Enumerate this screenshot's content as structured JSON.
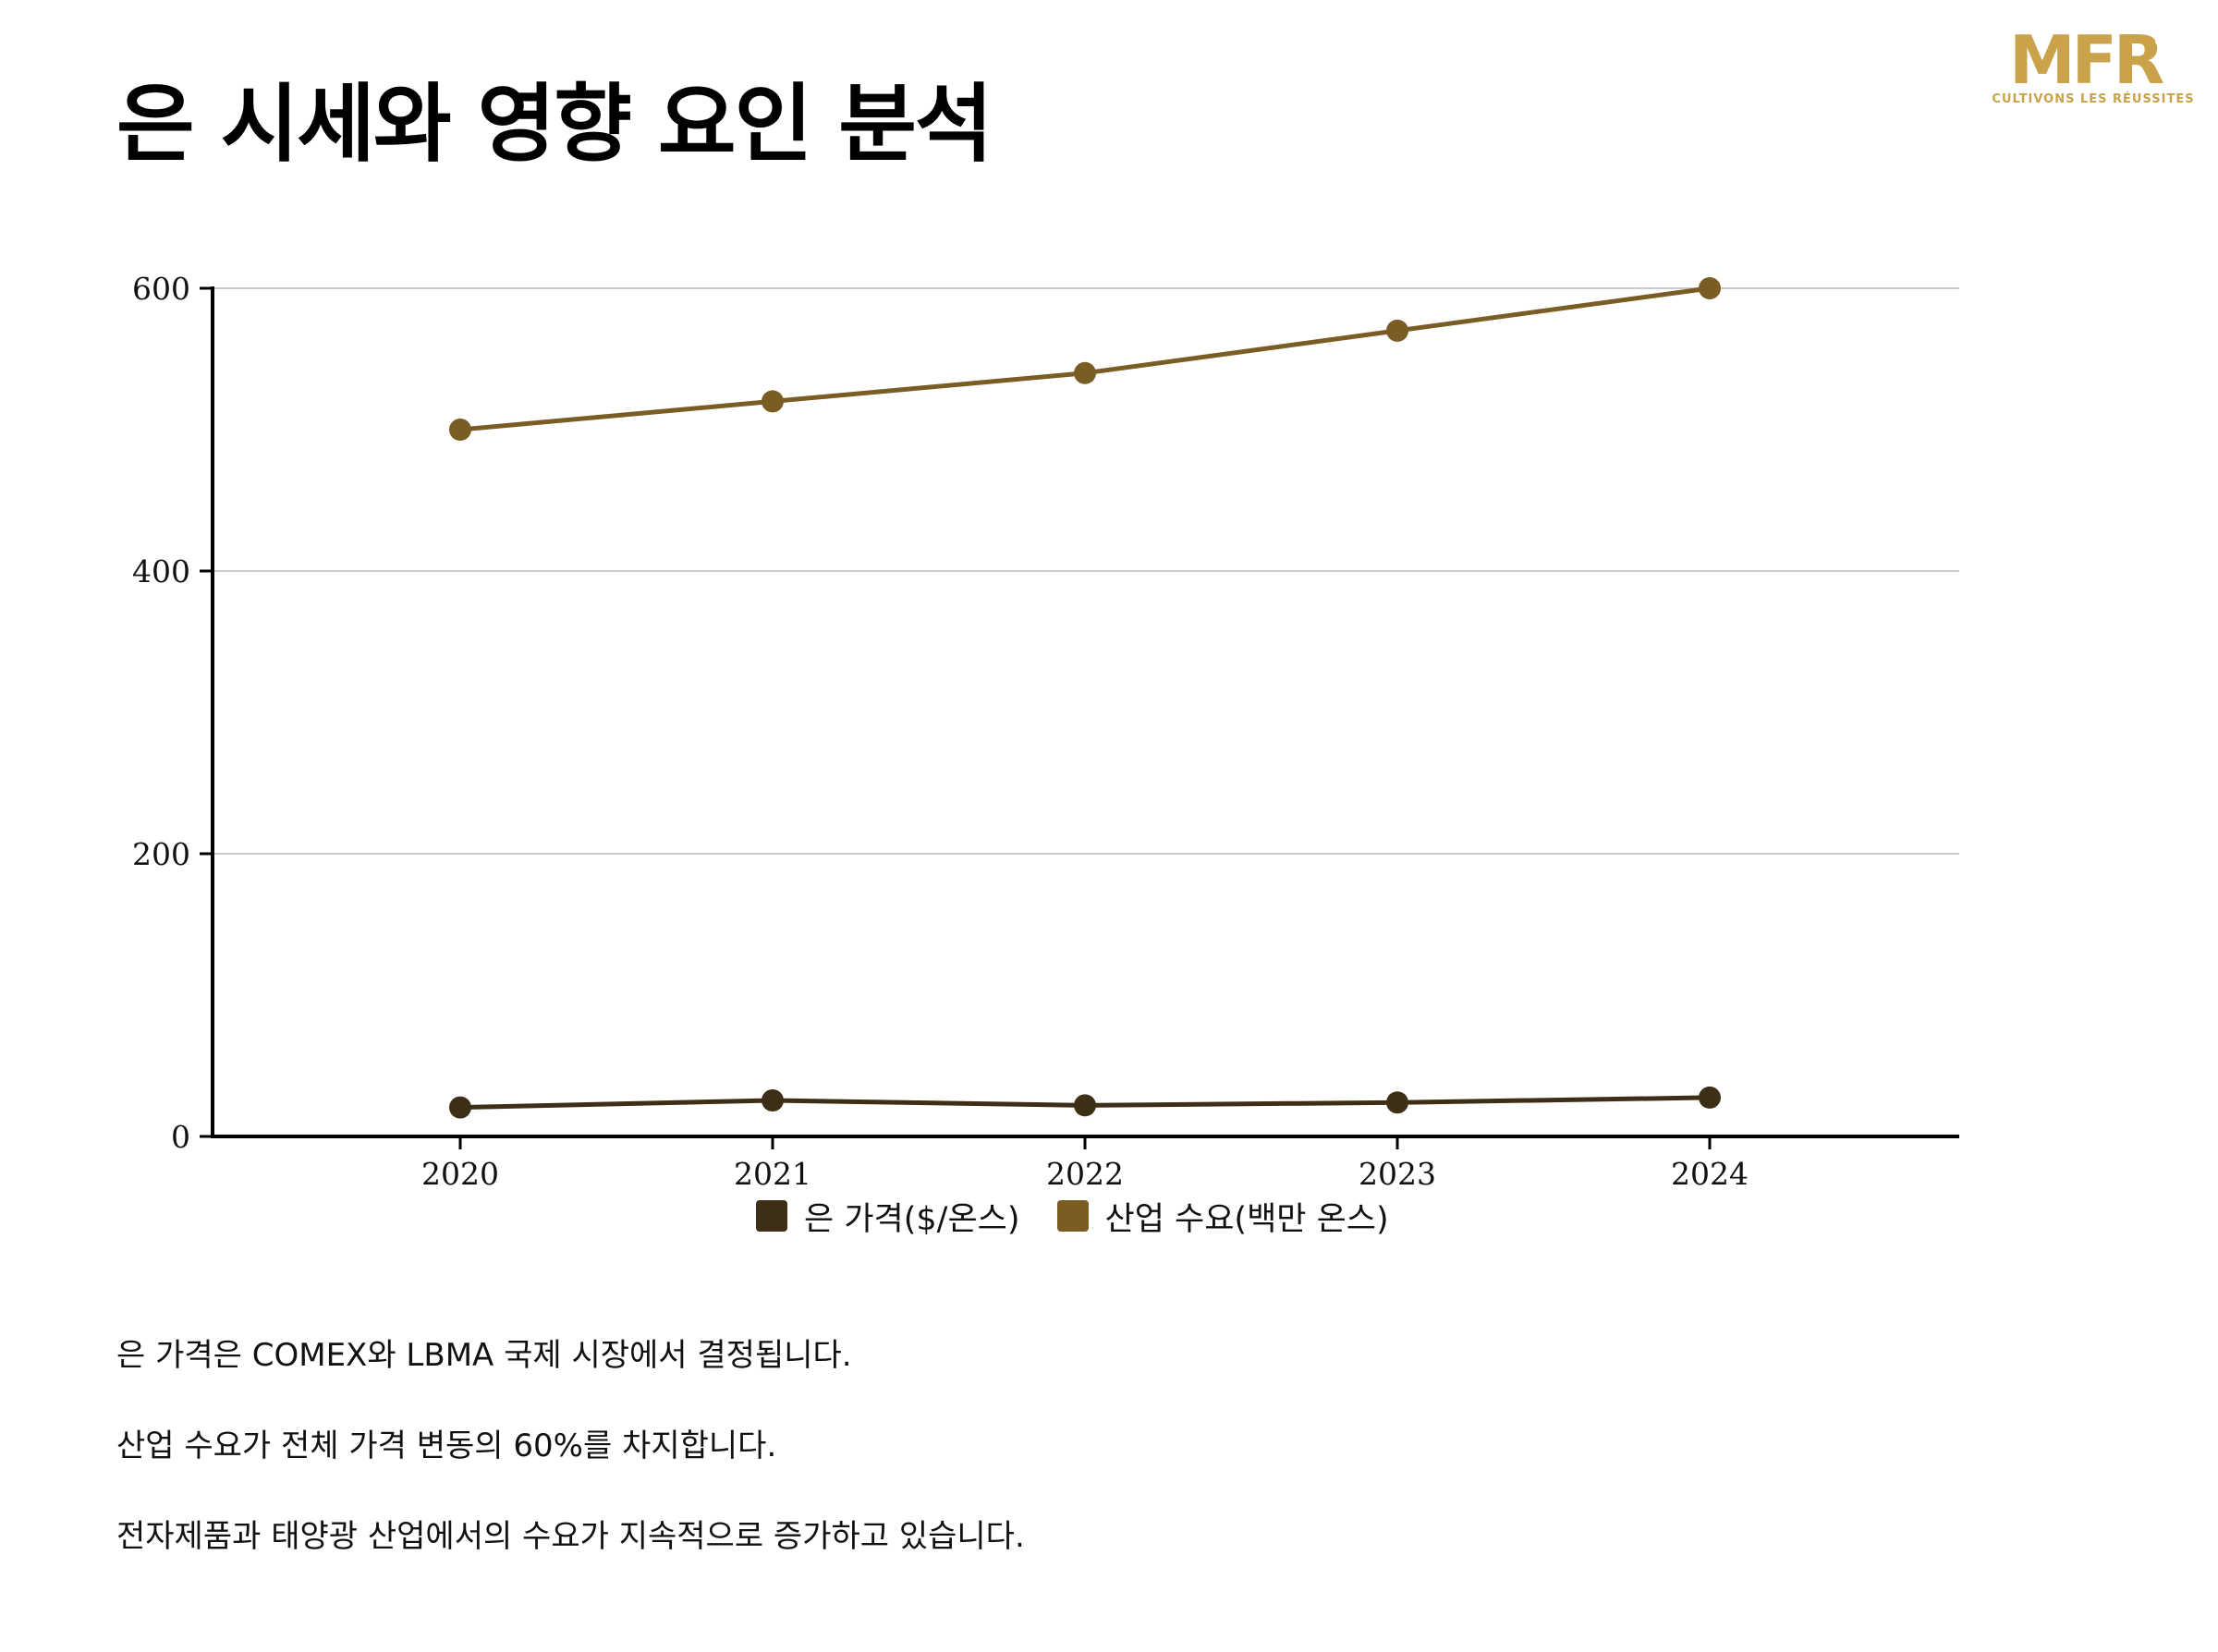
{
  "title": "은 시세와 영향 요인 분석",
  "logo": {
    "text": "MFR",
    "tagline": "CULTIVONS LES RÉUSSITES",
    "color": "#c9a24a",
    "icon": "person-figure-icon"
  },
  "chart_data": {
    "type": "line",
    "title": "",
    "xlabel": "",
    "ylabel": "",
    "categories": [
      "2020",
      "2021",
      "2022",
      "2023",
      "2024"
    ],
    "series": [
      {
        "name": "은 가격($/온스)",
        "values": [
          20.5,
          25.5,
          22,
          24,
          27.5
        ],
        "color": "#3d2f16"
      },
      {
        "name": "산업 수요(백만 온스)",
        "values": [
          500,
          520,
          540,
          570,
          600
        ],
        "color": "#7a5c25"
      }
    ],
    "ylim": [
      0,
      600
    ],
    "yticks": [
      0,
      200,
      400,
      600
    ],
    "grid": true,
    "legend": "bottom-center"
  },
  "notes": [
    "은 가격은 COMEX와 LBMA 국제 시장에서 결정됩니다.",
    "산업 수요가 전체 가격 변동의 60%를 차지합니다.",
    "전자제품과 태양광 산업에서의 수요가 지속적으로 증가하고 있습니다."
  ]
}
